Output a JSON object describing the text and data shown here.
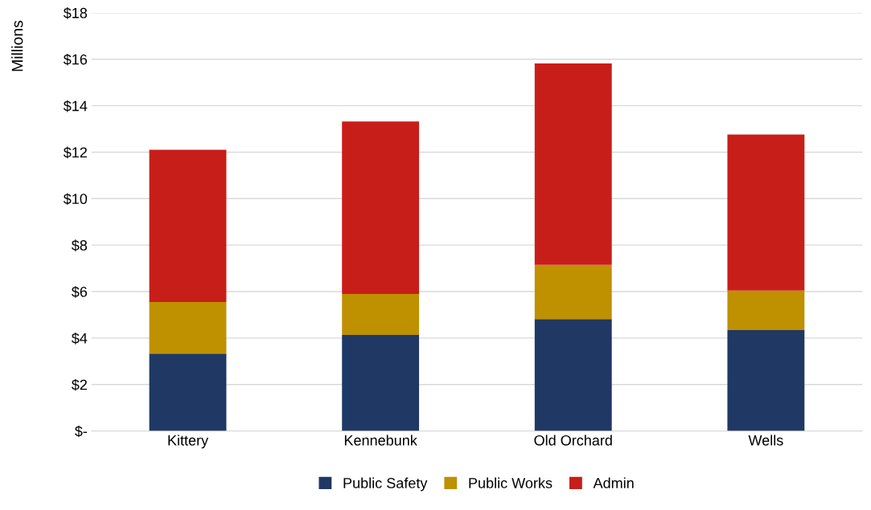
{
  "chart_data": {
    "type": "bar",
    "stacked": true,
    "ylabel": "Millions",
    "categories": [
      "Kittery",
      "Kennebunk",
      "Old Orchard",
      "Wells"
    ],
    "series": [
      {
        "name": "Public Safety",
        "color": "#203864",
        "values": [
          3.33,
          4.13,
          4.82,
          4.34
        ]
      },
      {
        "name": "Public Works",
        "color": "#bf9000",
        "values": [
          2.22,
          1.77,
          2.33,
          1.7
        ]
      },
      {
        "name": "Admin",
        "color": "#c81e19",
        "values": [
          6.55,
          7.42,
          8.67,
          6.72
        ]
      }
    ],
    "ylim": [
      0,
      18
    ],
    "yticks": [
      {
        "value": 0,
        "label": "$-"
      },
      {
        "value": 2,
        "label": "$2"
      },
      {
        "value": 4,
        "label": "$4"
      },
      {
        "value": 6,
        "label": "$6"
      },
      {
        "value": 8,
        "label": "$8"
      },
      {
        "value": 10,
        "label": "$10"
      },
      {
        "value": 12,
        "label": "$12"
      },
      {
        "value": 14,
        "label": "$14"
      },
      {
        "value": 16,
        "label": "$16"
      },
      {
        "value": 18,
        "label": "$18"
      }
    ],
    "grid": "y",
    "legend": "bottom"
  }
}
